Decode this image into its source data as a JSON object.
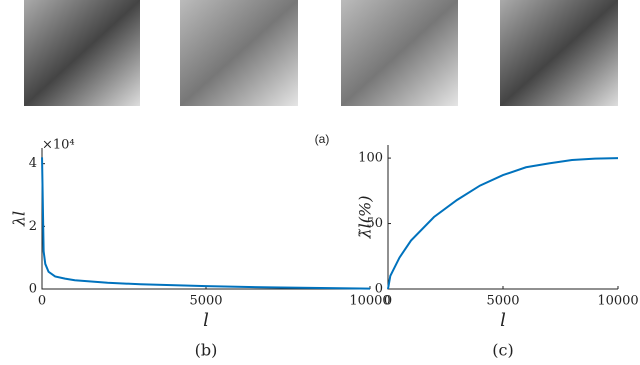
{
  "figure_caption_a": "(a)",
  "chart_data": [
    {
      "type": "line",
      "caption": "(b)",
      "xlabel": "l",
      "ylabel": "λl",
      "multiplier": "×10⁴",
      "x": [
        1,
        50,
        100,
        200,
        400,
        700,
        1000,
        2000,
        3000,
        5000,
        7000,
        10000
      ],
      "series": [
        {
          "color": "#0072bd",
          "values": [
            4.2,
            1.2,
            0.8,
            0.55,
            0.4,
            0.33,
            0.28,
            0.2,
            0.15,
            0.09,
            0.05,
            0.01
          ]
        }
      ],
      "xlim": [
        0,
        10000
      ],
      "xticks": [
        0,
        5000,
        10000
      ],
      "ylim": [
        0,
        4.5
      ],
      "yticks": [
        0,
        2,
        4
      ]
    },
    {
      "type": "line",
      "caption": "(c)",
      "xlabel": "l",
      "ylabel": "λ̃l(%)",
      "x": [
        0,
        100,
        500,
        1000,
        2000,
        3000,
        4000,
        5000,
        6000,
        7000,
        8000,
        9000,
        10000
      ],
      "series": [
        {
          "color": "#0072bd",
          "values": [
            0,
            10,
            24,
            37,
            55,
            68,
            79,
            87,
            93,
            96,
            98.5,
            99.6,
            100
          ]
        }
      ],
      "xlim": [
        0,
        10000
      ],
      "xticks": [
        0,
        5000,
        10000
      ],
      "ylim": [
        0,
        110
      ],
      "yticks": [
        0,
        50,
        100
      ]
    }
  ]
}
